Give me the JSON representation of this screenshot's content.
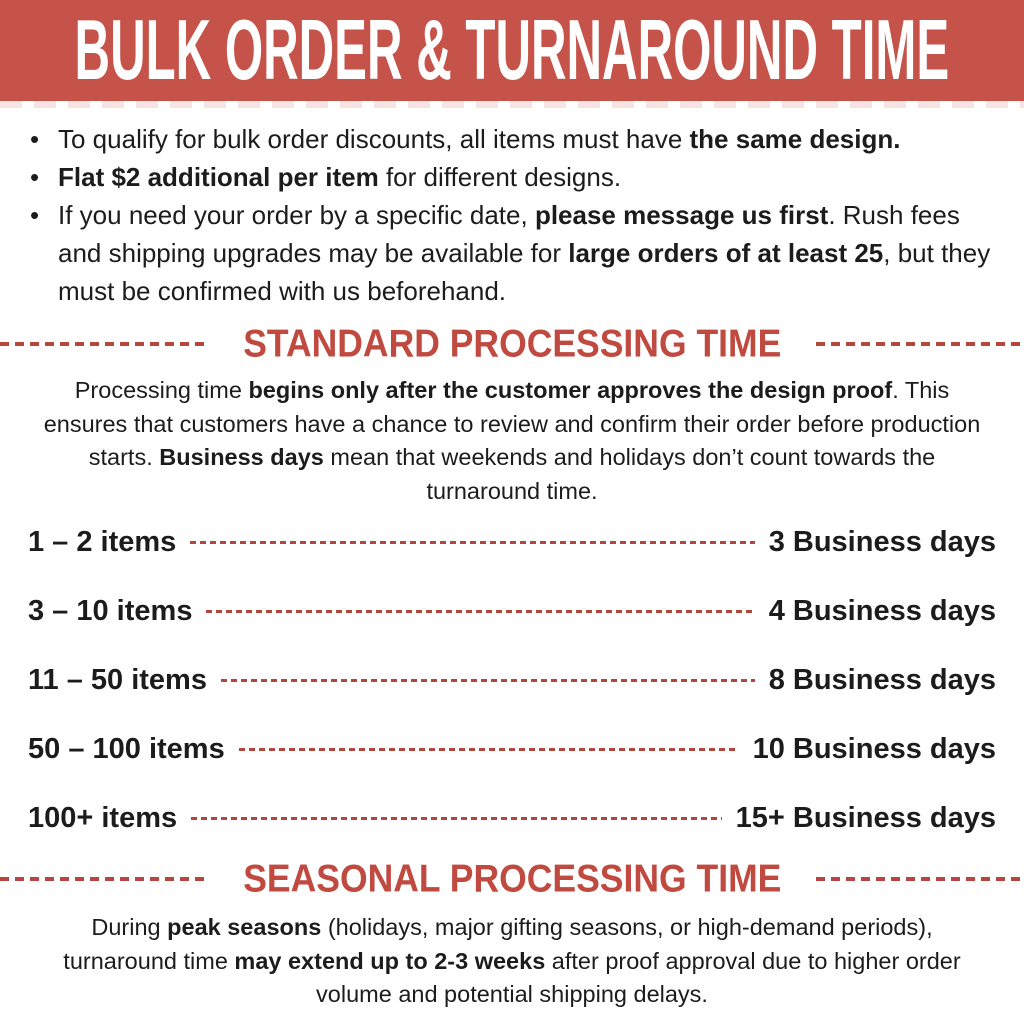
{
  "banner": {
    "title": "BULK ORDER & TURNAROUND TIME",
    "bg_color": "#c5534a",
    "text_color": "#ffffff"
  },
  "colors": {
    "accent_red": "#c5534a",
    "heading_red": "#c04940",
    "dash_red": "#b2453c",
    "body_text": "#1c1c1c"
  },
  "bullets": [
    {
      "segments": [
        {
          "text": "To qualify for bulk order discounts, all items must have ",
          "bold": false
        },
        {
          "text": "the same design.",
          "bold": true
        }
      ]
    },
    {
      "segments": [
        {
          "text": "Flat $2 additional per item",
          "bold": true
        },
        {
          "text": " for different designs.",
          "bold": false
        }
      ]
    },
    {
      "segments": [
        {
          "text": "If you need your order by a specific date, ",
          "bold": false
        },
        {
          "text": "please message us first",
          "bold": true
        },
        {
          "text": ". Rush fees and shipping upgrades may be available for ",
          "bold": false
        },
        {
          "text": "large orders of at least 25",
          "bold": true
        },
        {
          "text": ", but they must be confirmed with us beforehand.",
          "bold": false
        }
      ]
    }
  ],
  "standard": {
    "heading": "STANDARD PROCESSING TIME",
    "intro_segments": [
      {
        "text": "Processing time ",
        "bold": false
      },
      {
        "text": "begins only after the customer approves the design proof",
        "bold": true
      },
      {
        "text": ". This ensures that customers have a chance to review and confirm their order before production starts. ",
        "bold": false
      },
      {
        "text": "Business days",
        "bold": true
      },
      {
        "text": " mean that weekends and holidays don’t count towards the turnaround time.",
        "bold": false
      }
    ],
    "rows": [
      {
        "range": "1 – 2 items",
        "days": "3 Business days"
      },
      {
        "range": "3 – 10 items",
        "days": "4 Business days"
      },
      {
        "range": "11 – 50 items",
        "days": "8 Business days"
      },
      {
        "range": "50 – 100 items",
        "days": "10 Business days"
      },
      {
        "range": "100+ items",
        "days": "15+ Business days"
      }
    ]
  },
  "seasonal": {
    "heading": "SEASONAL PROCESSING TIME",
    "body_segments": [
      {
        "text": "During ",
        "bold": false
      },
      {
        "text": "peak seasons",
        "bold": true
      },
      {
        "text": " (holidays, major gifting seasons, or high-demand periods), turnaround time ",
        "bold": false
      },
      {
        "text": "may extend up to 2-3 weeks",
        "bold": true
      },
      {
        "text": " after proof approval due to higher order volume and potential shipping delays.",
        "bold": false
      }
    ]
  },
  "bullet_glyph": "•"
}
